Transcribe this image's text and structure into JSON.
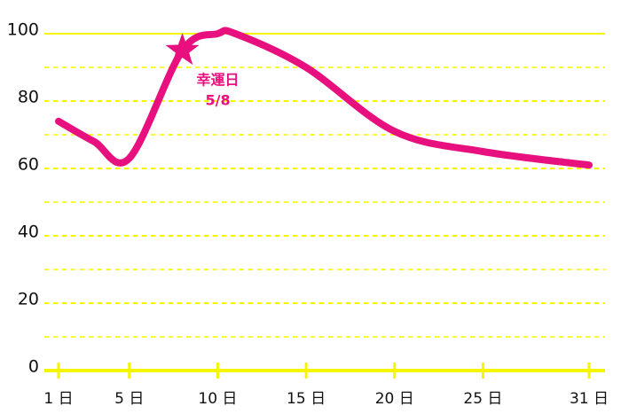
{
  "chart_data": {
    "type": "line",
    "x": [
      1,
      3,
      5,
      8,
      10,
      11,
      15,
      20,
      25,
      31
    ],
    "series": [
      {
        "color": "#e8107e",
        "values": [
          74,
          68,
          63,
          95,
          100,
          100,
          90,
          71,
          65,
          61
        ]
      }
    ],
    "xlim": [
      1,
      31
    ],
    "xticks": [
      {
        "value": 1,
        "label": "1 日"
      },
      {
        "value": 5,
        "label": "5 日"
      },
      {
        "value": 10,
        "label": "10 日"
      },
      {
        "value": 15,
        "label": "15 日"
      },
      {
        "value": 20,
        "label": "20 日"
      },
      {
        "value": 25,
        "label": "25 日"
      },
      {
        "value": 31,
        "label": "31 日"
      }
    ],
    "ylim": [
      0,
      100
    ],
    "yticks": [
      0,
      20,
      40,
      60,
      80,
      100
    ],
    "yminorticks": [
      10,
      30,
      50,
      70,
      90
    ],
    "grid": true,
    "grid_color": "#f5f500",
    "annotation": {
      "x": 8,
      "y": 95,
      "label": "幸運日",
      "sublabel": "5/8"
    }
  }
}
